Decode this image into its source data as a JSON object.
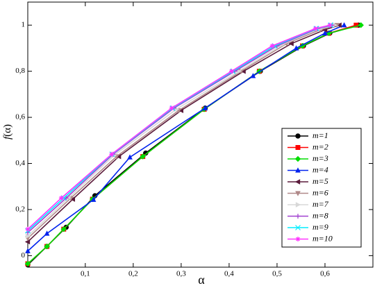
{
  "chart_data": {
    "type": "line",
    "x_label": "α",
    "y_label_prefix": "f",
    "y_label_suffix": "(α)",
    "xlim": [
      -0.02,
      0.7
    ],
    "ylim": [
      -0.05,
      1.1
    ],
    "xticks": [
      {
        "value": 0.1,
        "label": "0,1"
      },
      {
        "value": 0.2,
        "label": "0,2"
      },
      {
        "value": 0.3,
        "label": "0,3"
      },
      {
        "value": 0.4,
        "label": "0,4"
      },
      {
        "value": 0.5,
        "label": "0,5"
      },
      {
        "value": 0.6,
        "label": "0,6"
      }
    ],
    "yticks": [
      0,
      {
        "value": 0.2,
        "label": "0,2"
      },
      {
        "value": 0.4,
        "label": "0,4"
      },
      {
        "value": 0.6,
        "label": "0,6"
      },
      {
        "value": 0.8,
        "label": "0,8"
      },
      1
    ],
    "legend": "lower-right",
    "series": [
      {
        "name": "m=1",
        "color": "#000000",
        "marker": "circle",
        "x": [
          -0.02,
          0.02,
          0.06,
          0.12,
          0.226,
          0.35,
          0.465,
          0.555,
          0.61,
          0.67
        ],
        "values": [
          -0.04,
          0.04,
          0.123,
          0.26,
          0.445,
          0.64,
          0.8,
          0.91,
          0.965,
          1.0
        ]
      },
      {
        "name": "m=2",
        "color": "#ff0000",
        "marker": "square",
        "x": [
          -0.02,
          0.02,
          0.055,
          0.115,
          0.22,
          0.348,
          0.463,
          0.553,
          0.608,
          0.665
        ],
        "values": [
          -0.035,
          0.04,
          0.115,
          0.245,
          0.43,
          0.635,
          0.8,
          0.91,
          0.965,
          1.0
        ]
      },
      {
        "name": "m=3",
        "color": "#00dd00",
        "marker": "diamond",
        "x": [
          -0.02,
          0.02,
          0.055,
          0.115,
          0.22,
          0.348,
          0.463,
          0.553,
          0.608,
          0.675
        ],
        "values": [
          -0.035,
          0.04,
          0.115,
          0.245,
          0.43,
          0.635,
          0.8,
          0.91,
          0.965,
          1.0
        ]
      },
      {
        "name": "m=4",
        "color": "#0022ee",
        "marker": "tri-up",
        "x": [
          -0.02,
          0.02,
          0.117,
          0.193,
          0.35,
          0.45,
          0.54,
          0.6,
          0.64
        ],
        "values": [
          0.02,
          0.096,
          0.243,
          0.427,
          0.64,
          0.78,
          0.9,
          0.965,
          1.0
        ]
      },
      {
        "name": "m=5",
        "color": "#5a1a3a",
        "marker": "tri-left",
        "x": [
          -0.02,
          0.074,
          0.17,
          0.3,
          0.43,
          0.53,
          0.6,
          0.63
        ],
        "values": [
          0.06,
          0.245,
          0.43,
          0.63,
          0.8,
          0.92,
          0.98,
          1.0
        ]
      },
      {
        "name": "m=6",
        "color": "#b08888",
        "marker": "tri-down",
        "x": [
          -0.02,
          0.07,
          0.165,
          0.295,
          0.425,
          0.52,
          0.59,
          0.625
        ],
        "values": [
          0.075,
          0.25,
          0.43,
          0.63,
          0.8,
          0.92,
          0.98,
          1.0
        ]
      },
      {
        "name": "m=7",
        "color": "#d8d8d8",
        "marker": "tri-right",
        "x": [
          -0.02,
          0.065,
          0.16,
          0.29,
          0.42,
          0.51,
          0.59,
          0.62
        ],
        "values": [
          0.085,
          0.25,
          0.435,
          0.635,
          0.8,
          0.915,
          0.985,
          1.0
        ]
      },
      {
        "name": "m=8",
        "color": "#a040d0",
        "marker": "plus",
        "x": [
          -0.02,
          0.06,
          0.158,
          0.285,
          0.412,
          0.5,
          0.585,
          0.615
        ],
        "values": [
          0.1,
          0.25,
          0.44,
          0.64,
          0.8,
          0.91,
          0.985,
          1.0
        ]
      },
      {
        "name": "m=9",
        "color": "#00eeff",
        "marker": "cross",
        "x": [
          -0.02,
          0.055,
          0.156,
          0.282,
          0.408,
          0.495,
          0.582,
          0.612
        ],
        "values": [
          0.108,
          0.25,
          0.44,
          0.64,
          0.8,
          0.91,
          0.985,
          1.0
        ]
      },
      {
        "name": "m=10",
        "color": "#ff33ff",
        "marker": "star",
        "x": [
          -0.02,
          0.05,
          0.155,
          0.28,
          0.405,
          0.49,
          0.58,
          0.61
        ],
        "values": [
          0.115,
          0.25,
          0.44,
          0.64,
          0.8,
          0.91,
          0.985,
          1.0
        ]
      }
    ]
  }
}
